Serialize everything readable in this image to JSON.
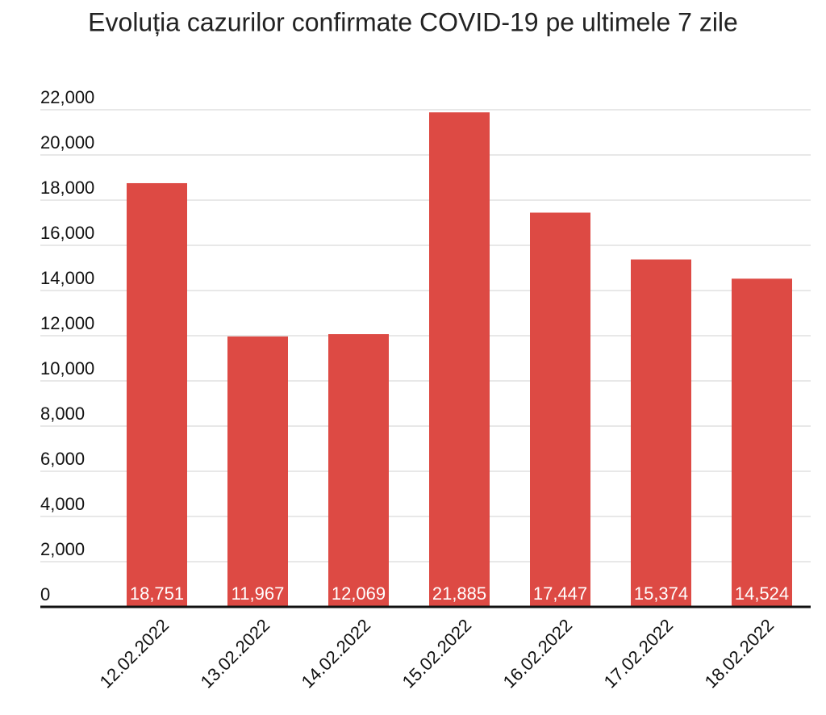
{
  "chart_data": {
    "type": "bar",
    "title": "Evoluția cazurilor confirmate COVID-19 pe ultimele 7 zile",
    "categories": [
      "12.02.2022",
      "13.02.2022",
      "14.02.2022",
      "15.02.2022",
      "16.02.2022",
      "17.02.2022",
      "18.02.2022"
    ],
    "values": [
      18751,
      11967,
      12069,
      21885,
      17447,
      15374,
      14524
    ],
    "value_labels": [
      "18,751",
      "11,967",
      "12,069",
      "21,885",
      "17,447",
      "15,374",
      "14,524"
    ],
    "color": "#dd4a44",
    "ylim": [
      0,
      22000
    ],
    "yticks": [
      0,
      {
        "value": 2000,
        "label": "2,000"
      },
      {
        "value": 4000,
        "label": "4,000"
      },
      {
        "value": 6000,
        "label": "6,000"
      },
      {
        "value": 8000,
        "label": "8,000"
      },
      {
        "value": 10000,
        "label": "10,000"
      },
      {
        "value": 12000,
        "label": "12,000"
      },
      {
        "value": 14000,
        "label": "14,000"
      },
      {
        "value": 16000,
        "label": "16,000"
      },
      {
        "value": 18000,
        "label": "18,000"
      },
      {
        "value": 20000,
        "label": "20,000"
      },
      {
        "value": 22000,
        "label": "22,000"
      }
    ],
    "grid": true
  }
}
